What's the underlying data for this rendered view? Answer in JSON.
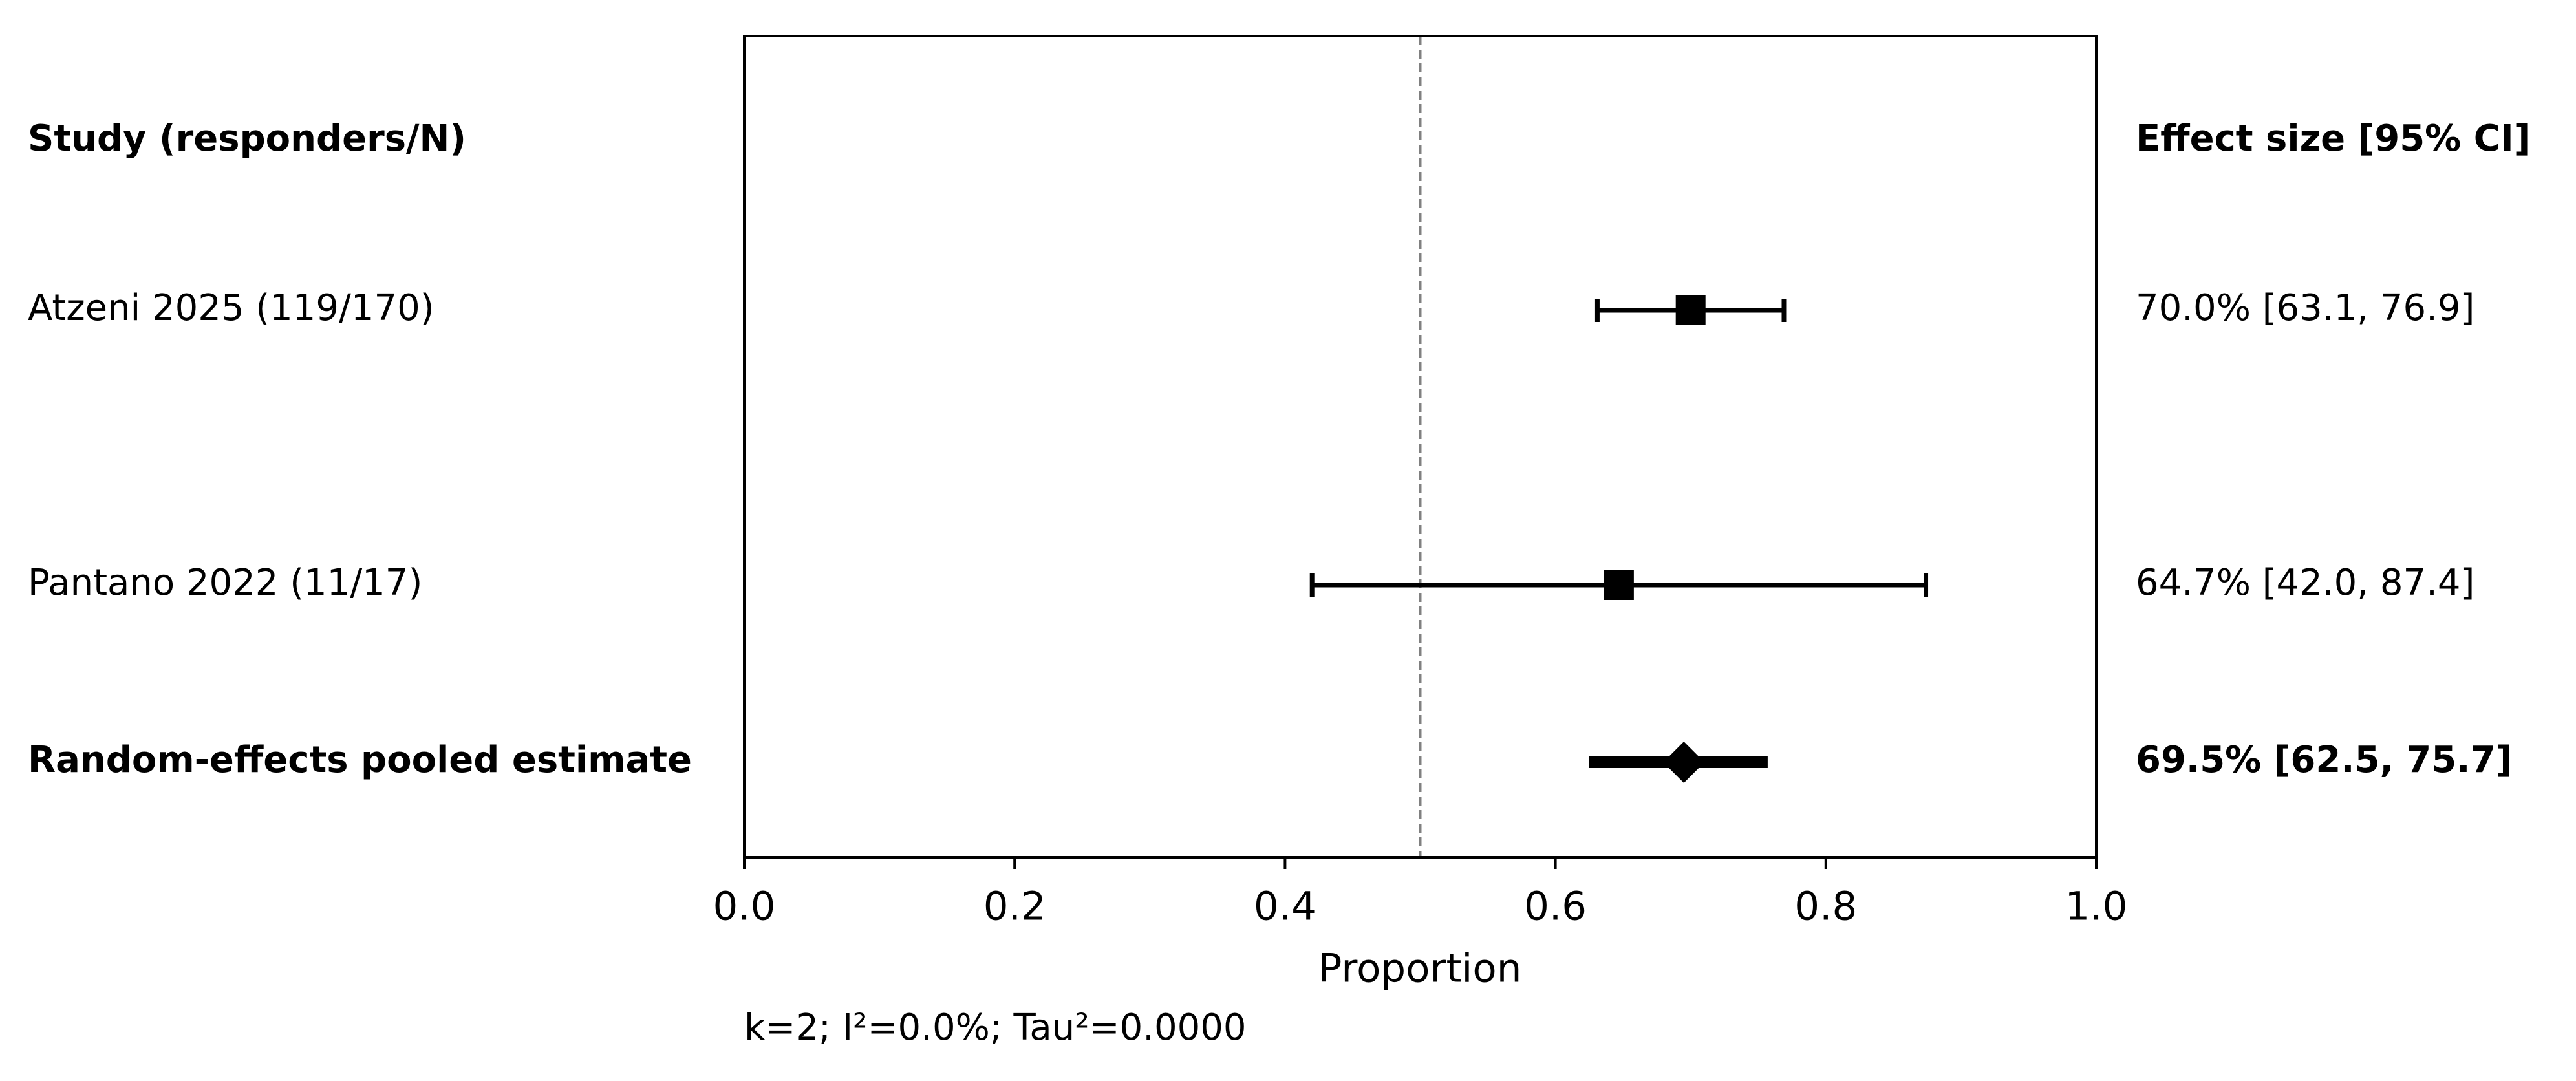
{
  "chart_data": {
    "type": "forest",
    "left_header": "Study (responders/N)",
    "right_header": "Effect size [95% CI]",
    "studies": [
      {
        "label": "Atzeni 2025  (119/170)",
        "estimate": 0.7,
        "lower": 0.631,
        "upper": 0.769,
        "text": "70.0% [63.1, 76.9]"
      },
      {
        "label": "Pantano 2022  (11/17)",
        "estimate": 0.647,
        "lower": 0.42,
        "upper": 0.874,
        "text": "64.7% [42.0, 87.4]"
      }
    ],
    "pooled": {
      "label": "Random-effects pooled estimate",
      "estimate": 0.695,
      "lower": 0.625,
      "upper": 0.757,
      "text": "69.5% [62.5, 75.7]"
    },
    "reference_line": 0.5,
    "xlabel": "Proportion",
    "xlim": [
      0,
      1
    ],
    "xticks": [
      {
        "value": 0,
        "label": "0.0"
      },
      {
        "value": 0.2,
        "label": "0.2"
      },
      {
        "value": 0.4,
        "label": "0.4"
      },
      {
        "value": 0.6,
        "label": "0.6"
      },
      {
        "value": 0.8,
        "label": "0.8"
      },
      {
        "value": 1,
        "label": "1.0"
      }
    ],
    "footnote": "k=2; I²=0.0%; Tau²=0.0000",
    "color": "#000000"
  }
}
